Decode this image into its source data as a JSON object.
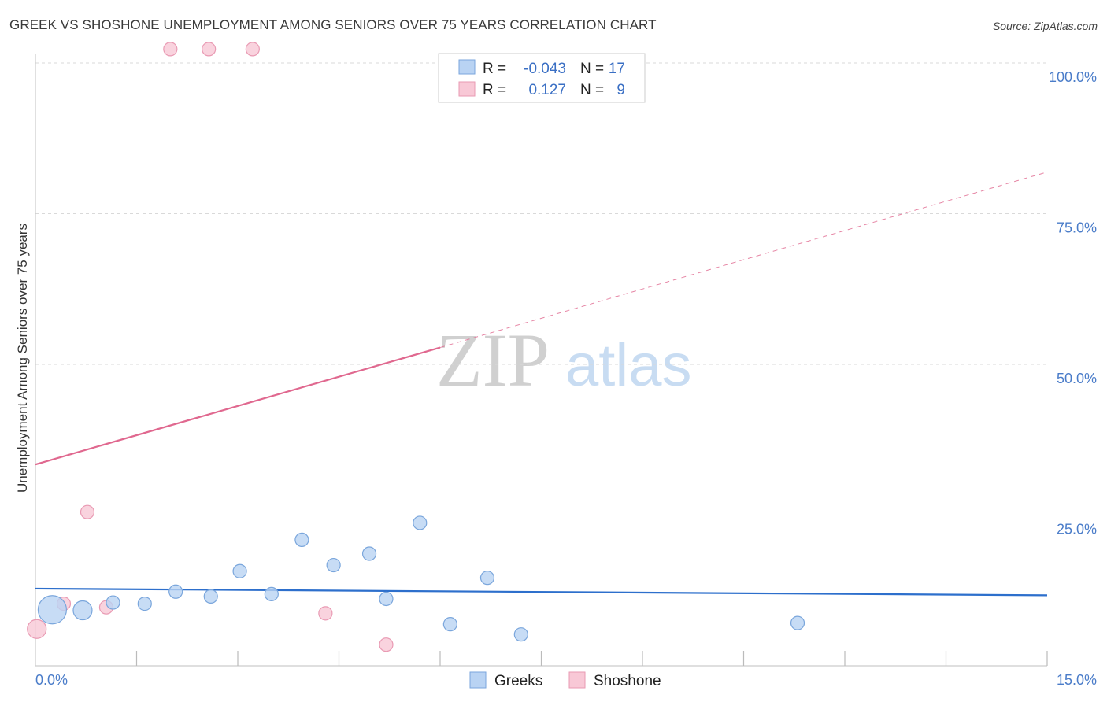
{
  "header": {
    "title": "GREEK VS SHOSHONE UNEMPLOYMENT AMONG SENIORS OVER 75 YEARS CORRELATION CHART",
    "source": "Source: ZipAtlas.com"
  },
  "watermark": {
    "zip": "ZIP",
    "atlas": "atlas"
  },
  "colors": {
    "greeks_fill": "#b9d3f3",
    "greeks_stroke": "#7aa6dc",
    "greeks_line": "#2d6fcc",
    "shoshone_fill": "#f8c8d6",
    "shoshone_stroke": "#e99ab3",
    "shoshone_line": "#e0688f",
    "grid": "#d9d9d9",
    "tick_text": "#4a7cc9"
  },
  "legend_stats": {
    "greeks": {
      "r_label": "R =",
      "r_value": "-0.043",
      "n_label": "N =",
      "n_value": "17"
    },
    "shoshone": {
      "r_label": "R =",
      "r_value": "0.127",
      "n_label": "N =",
      "n_value": "9"
    }
  },
  "chart_data": {
    "type": "scatter",
    "title": "GREEK VS SHOSHONE UNEMPLOYMENT AMONG SENIORS OVER 75 YEARS CORRELATION CHART",
    "xlabel": "",
    "ylabel": "Unemployment Among Seniors over 75 years",
    "xlim": [
      0,
      15
    ],
    "ylim": [
      0,
      100
    ],
    "x_tick_labels": [
      "0.0%",
      "15.0%"
    ],
    "y_ticks": [
      25,
      50,
      75,
      100
    ],
    "y_tick_labels": [
      "25.0%",
      "50.0%",
      "75.0%",
      "100.0%"
    ],
    "grid": true,
    "legend_position": "bottom",
    "series": [
      {
        "name": "Greeks",
        "points": [
          {
            "x": 0.25,
            "y": 9.3,
            "size": "large"
          },
          {
            "x": 0.7,
            "y": 9.2,
            "size": "medium"
          },
          {
            "x": 1.15,
            "y": 10.5,
            "size": "small"
          },
          {
            "x": 1.62,
            "y": 10.3,
            "size": "small"
          },
          {
            "x": 2.08,
            "y": 12.3,
            "size": "small"
          },
          {
            "x": 2.6,
            "y": 11.5,
            "size": "small"
          },
          {
            "x": 3.03,
            "y": 15.7,
            "size": "small"
          },
          {
            "x": 3.5,
            "y": 11.9,
            "size": "small"
          },
          {
            "x": 3.95,
            "y": 20.9,
            "size": "small"
          },
          {
            "x": 4.42,
            "y": 16.7,
            "size": "small"
          },
          {
            "x": 4.95,
            "y": 18.6,
            "size": "small"
          },
          {
            "x": 5.2,
            "y": 11.1,
            "size": "small"
          },
          {
            "x": 5.7,
            "y": 23.7,
            "size": "small"
          },
          {
            "x": 6.15,
            "y": 6.9,
            "size": "small"
          },
          {
            "x": 6.7,
            "y": 14.6,
            "size": "small"
          },
          {
            "x": 7.2,
            "y": 5.2,
            "size": "small"
          },
          {
            "x": 11.3,
            "y": 7.1,
            "size": "small"
          }
        ],
        "trend": {
          "x": [
            0,
            15
          ],
          "y": [
            12.8,
            11.7
          ]
        }
      },
      {
        "name": "Shoshone",
        "points": [
          {
            "x": 0.02,
            "y": 6.1,
            "size": "medium"
          },
          {
            "x": 0.42,
            "y": 10.3,
            "size": "small"
          },
          {
            "x": 0.77,
            "y": 25.5,
            "size": "small"
          },
          {
            "x": 1.05,
            "y": 9.7,
            "size": "small"
          },
          {
            "x": 2.0,
            "y": 102.3,
            "size": "small"
          },
          {
            "x": 2.57,
            "y": 102.3,
            "size": "small"
          },
          {
            "x": 3.22,
            "y": 102.3,
            "size": "small"
          },
          {
            "x": 4.3,
            "y": 8.7,
            "size": "small"
          },
          {
            "x": 5.2,
            "y": 3.5,
            "size": "small"
          }
        ],
        "trend": {
          "x": [
            0,
            6.0
          ],
          "y": [
            33.4,
            52.8
          ]
        },
        "trend_extension": {
          "x": [
            6.0,
            15
          ],
          "y": [
            52.8,
            81.9
          ]
        }
      }
    ]
  }
}
